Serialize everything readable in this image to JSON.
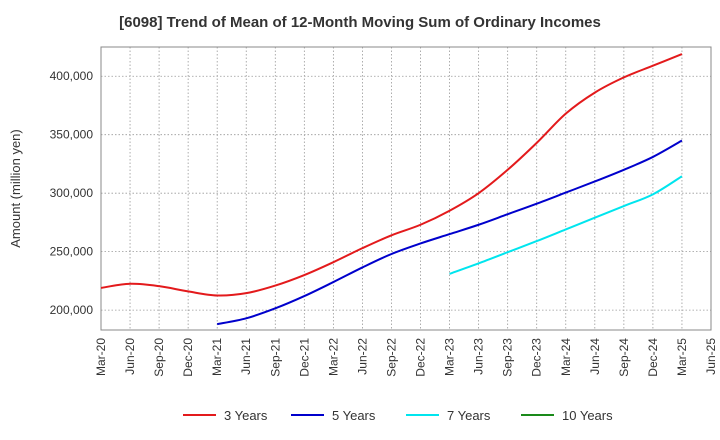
{
  "chart_data": {
    "type": "line",
    "title": "[6098]  Trend of Mean of 12-Month Moving Sum of Ordinary Incomes",
    "xlabel": "",
    "ylabel": "Amount (million yen)",
    "ylim": [
      183000,
      425000
    ],
    "yticks": [
      200000,
      250000,
      300000,
      350000,
      400000
    ],
    "ytick_labels": [
      "200,000",
      "250,000",
      "300,000",
      "350,000",
      "400,000"
    ],
    "categories": [
      "Mar-20",
      "Jun-20",
      "Sep-20",
      "Dec-20",
      "Mar-21",
      "Jun-21",
      "Sep-21",
      "Dec-21",
      "Mar-22",
      "Jun-22",
      "Sep-22",
      "Dec-22",
      "Mar-23",
      "Jun-23",
      "Sep-23",
      "Dec-23",
      "Mar-24",
      "Jun-24",
      "Sep-24",
      "Dec-24",
      "Mar-25",
      "Jun-25"
    ],
    "grid": true,
    "legend_position": "bottom",
    "series": [
      {
        "name": "3 Years",
        "color": "#e31a1c",
        "values": [
          219000,
          222500,
          220500,
          216000,
          212500,
          214500,
          221000,
          230000,
          241000,
          253000,
          264000,
          273000,
          285000,
          300000,
          320000,
          343000,
          368000,
          386000,
          399000,
          409000,
          419000,
          null
        ]
      },
      {
        "name": "5 Years",
        "color": "#0000cc",
        "values": [
          null,
          null,
          null,
          null,
          188000,
          193000,
          201500,
          212000,
          224000,
          236500,
          248000,
          257000,
          265000,
          273000,
          282000,
          291000,
          300500,
          310000,
          320000,
          331000,
          345000,
          null
        ]
      },
      {
        "name": "7 Years",
        "color": "#00e5ee",
        "values": [
          null,
          null,
          null,
          null,
          null,
          null,
          null,
          null,
          null,
          null,
          null,
          null,
          231000,
          240000,
          249500,
          259000,
          269000,
          279000,
          289000,
          299000,
          314500,
          null
        ]
      },
      {
        "name": "10 Years",
        "color": "#1a8a1a",
        "values": [
          null,
          null,
          null,
          null,
          null,
          null,
          null,
          null,
          null,
          null,
          null,
          null,
          null,
          null,
          null,
          null,
          null,
          null,
          null,
          null,
          null,
          null
        ]
      }
    ]
  }
}
